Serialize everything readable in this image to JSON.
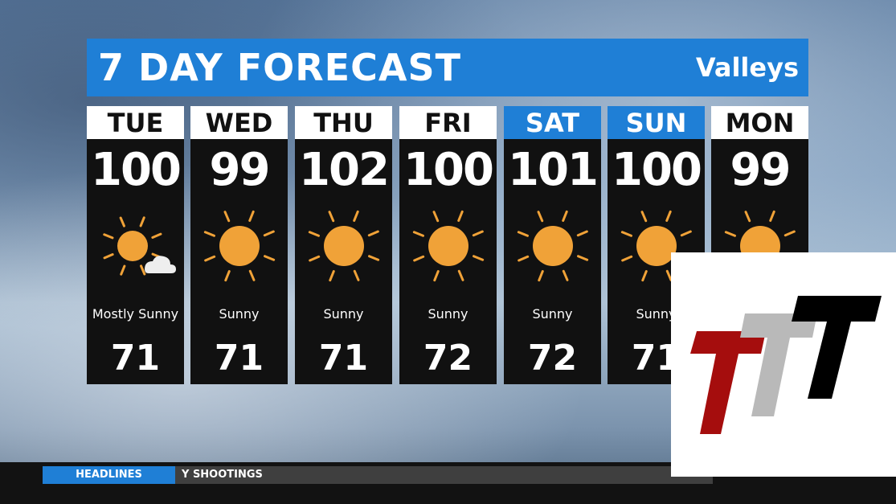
{
  "header": {
    "title": "7 DAY FORECAST",
    "region": "Valleys"
  },
  "days": [
    {
      "day": "TUE",
      "high": "100",
      "condition": "Mostly Sunny",
      "low": "71",
      "weekend": false,
      "icon": "sun-cloud-icon"
    },
    {
      "day": "WED",
      "high": "99",
      "condition": "Sunny",
      "low": "71",
      "weekend": false,
      "icon": "sun-icon"
    },
    {
      "day": "THU",
      "high": "102",
      "condition": "Sunny",
      "low": "71",
      "weekend": false,
      "icon": "sun-icon"
    },
    {
      "day": "FRI",
      "high": "100",
      "condition": "Sunny",
      "low": "72",
      "weekend": false,
      "icon": "sun-icon"
    },
    {
      "day": "SAT",
      "high": "101",
      "condition": "Sunny",
      "low": "72",
      "weekend": true,
      "icon": "sun-icon"
    },
    {
      "day": "SUN",
      "high": "100",
      "condition": "Sunny",
      "low": "71",
      "weekend": true,
      "icon": "sun-icon"
    },
    {
      "day": "MON",
      "high": "99",
      "condition": "",
      "low": "",
      "weekend": false,
      "icon": "sun-icon"
    }
  ],
  "ticker": {
    "label": "HEADLINES",
    "text": "Y SHOOTINGS"
  },
  "colors": {
    "accent": "#1f7fd6",
    "sun": "#f0a238",
    "panel": "#111111"
  }
}
